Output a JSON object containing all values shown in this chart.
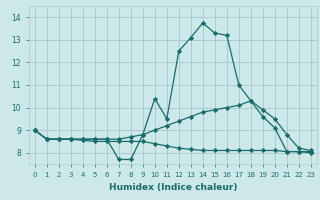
{
  "title": "",
  "xlabel": "Humidex (Indice chaleur)",
  "ylabel": "",
  "bg_color": "#cce8e8",
  "grid_color": "#aacccc",
  "line_color": "#1a6b6b",
  "marker_color": "#1a6b6b",
  "xlim": [
    -0.5,
    23.5
  ],
  "ylim": [
    7.5,
    14.5
  ],
  "yticks": [
    8,
    9,
    10,
    11,
    12,
    13,
    14
  ],
  "xticks": [
    0,
    1,
    2,
    3,
    4,
    5,
    6,
    7,
    8,
    9,
    10,
    11,
    12,
    13,
    14,
    15,
    16,
    17,
    18,
    19,
    20,
    21,
    22,
    23
  ],
  "series": [
    {
      "x": [
        0,
        1,
        2,
        3,
        4,
        5,
        6,
        7,
        8,
        9,
        10,
        11,
        12,
        13,
        14,
        15,
        16,
        17,
        18,
        19,
        20,
        21,
        22,
        23
      ],
      "y": [
        9.0,
        8.6,
        8.6,
        8.6,
        8.6,
        8.6,
        8.6,
        7.7,
        7.7,
        8.8,
        10.4,
        9.5,
        12.5,
        13.1,
        13.75,
        13.3,
        13.2,
        11.0,
        10.3,
        9.6,
        9.1,
        8.05,
        8.05,
        8.05
      ]
    },
    {
      "x": [
        0,
        1,
        2,
        3,
        4,
        5,
        6,
        7,
        8,
        9,
        10,
        11,
        12,
        13,
        14,
        15,
        16,
        17,
        18,
        19,
        20,
        21,
        22,
        23
      ],
      "y": [
        9.0,
        8.6,
        8.6,
        8.6,
        8.6,
        8.6,
        8.6,
        8.6,
        8.7,
        8.8,
        9.0,
        9.2,
        9.4,
        9.6,
        9.8,
        9.9,
        10.0,
        10.1,
        10.3,
        9.9,
        9.5,
        8.8,
        8.2,
        8.1
      ]
    },
    {
      "x": [
        0,
        1,
        2,
        3,
        4,
        5,
        6,
        7,
        8,
        9,
        10,
        11,
        12,
        13,
        14,
        15,
        16,
        17,
        18,
        19,
        20,
        21,
        22,
        23
      ],
      "y": [
        9.0,
        8.6,
        8.6,
        8.6,
        8.55,
        8.5,
        8.5,
        8.5,
        8.5,
        8.5,
        8.4,
        8.3,
        8.2,
        8.15,
        8.1,
        8.1,
        8.1,
        8.1,
        8.1,
        8.1,
        8.1,
        8.05,
        8.05,
        8.0
      ]
    }
  ]
}
